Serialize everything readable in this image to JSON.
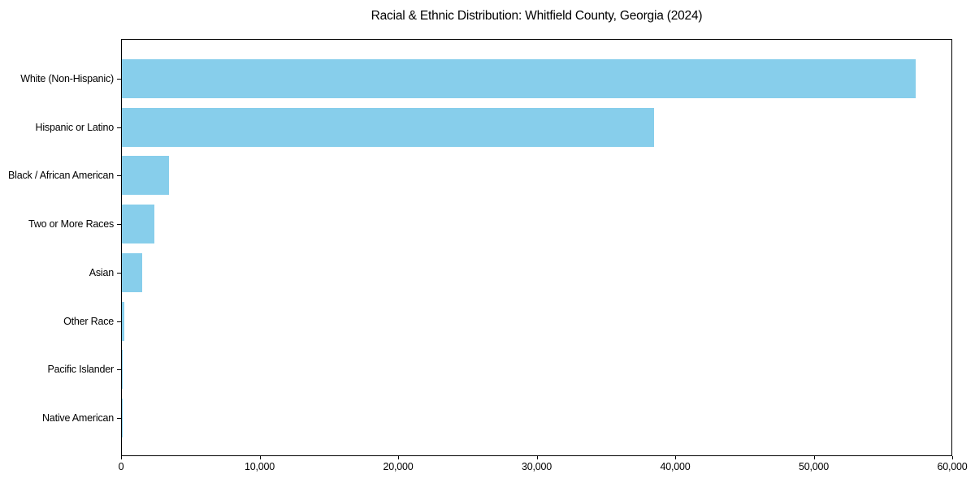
{
  "title": "Racial & Ethnic Distribution: Whitfield County, Georgia (2024)",
  "colors": {
    "bar": "#87CEEB",
    "axis": "#000000",
    "text": "#000000",
    "background": "#ffffff"
  },
  "chart_data": {
    "type": "bar",
    "orientation": "horizontal",
    "title": "Racial & Ethnic Distribution: Whitfield County, Georgia (2024)",
    "xlabel": "",
    "ylabel": "",
    "categories": [
      "White (Non-Hispanic)",
      "Hispanic or Latino",
      "Black / African American",
      "Two or More Races",
      "Asian",
      "Other Race",
      "Pacific Islander",
      "Native American"
    ],
    "values": [
      57300,
      38400,
      3400,
      2370,
      1460,
      150,
      50,
      30
    ],
    "xlim": [
      0,
      60000
    ],
    "x_ticks": [
      0,
      10000,
      20000,
      30000,
      40000,
      50000,
      60000
    ],
    "x_tick_labels": [
      "0",
      "10,000",
      "20,000",
      "30,000",
      "40,000",
      "50,000",
      "60,000"
    ],
    "bar_color": "#87CEEB",
    "grid": false,
    "legend": false
  }
}
